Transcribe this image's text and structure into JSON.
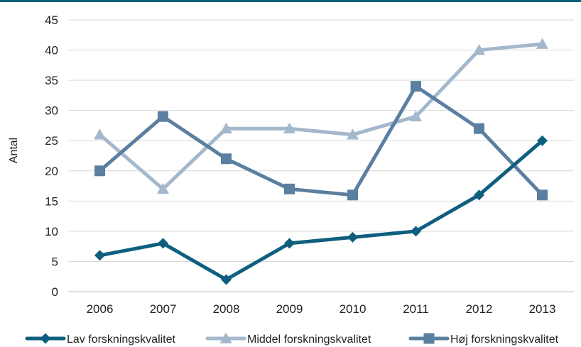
{
  "colors": {
    "top_rule": "#0e5f7e",
    "gridline": "#d9d9d9",
    "axis": "#bfbfbf"
  },
  "chart_data": {
    "type": "line",
    "title": "",
    "xlabel": "",
    "ylabel": "Antal",
    "categories": [
      "2006",
      "2007",
      "2008",
      "2009",
      "2010",
      "2011",
      "2012",
      "2013"
    ],
    "ylim": [
      0,
      45
    ],
    "yticks": [
      0,
      5,
      10,
      15,
      20,
      25,
      30,
      35,
      40,
      45
    ],
    "grid": true,
    "legend_position": "bottom",
    "series": [
      {
        "name": "Lav forskningskvalitet",
        "values": [
          6,
          8,
          2,
          8,
          9,
          10,
          16,
          25
        ],
        "color": "#0e5f7e",
        "marker": "diamond"
      },
      {
        "name": "Middel forskningskvalitet",
        "values": [
          26,
          17,
          27,
          27,
          26,
          29,
          40,
          41
        ],
        "color": "#a4b7cc",
        "marker": "triangle"
      },
      {
        "name": "Høj forskningskvalitet",
        "values": [
          20,
          29,
          22,
          17,
          16,
          34,
          27,
          16
        ],
        "color": "#5b7fa0",
        "marker": "square"
      }
    ]
  }
}
